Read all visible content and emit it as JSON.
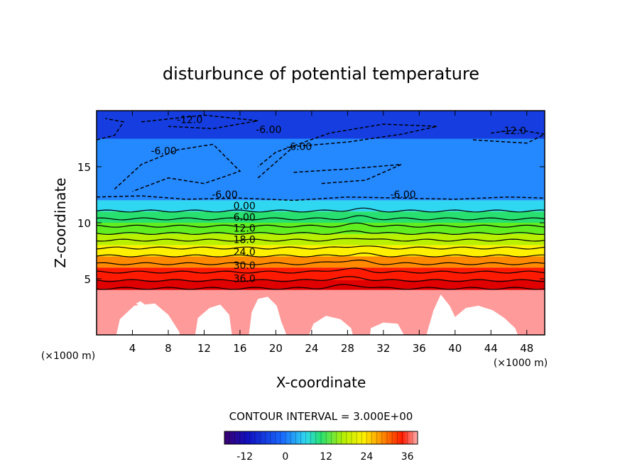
{
  "chart_data": {
    "type": "heatmap",
    "title": "disturbunce of potential temperature",
    "xlabel": "X-coordinate",
    "ylabel": "Z-coordinate",
    "x_units": "(×1000 m)",
    "y_units": "(×1000 m)",
    "xlim": [
      0,
      50
    ],
    "ylim": [
      0,
      20
    ],
    "x_ticks": [
      4,
      8,
      12,
      16,
      20,
      24,
      28,
      32,
      36,
      40,
      44,
      48
    ],
    "y_ticks": [
      5,
      10,
      15
    ],
    "contour_interval_text": "CONTOUR INTERVAL = 3.000E+00",
    "colorbar": {
      "min": -18,
      "max": 39,
      "ticks": [
        -12,
        0,
        12,
        24,
        36
      ]
    },
    "contour_labels": [
      {
        "text": "-12.0",
        "x": 10.4,
        "z": 18.9
      },
      {
        "text": "-12.0",
        "x": 46.5,
        "z": 17.9
      },
      {
        "text": "-6.00",
        "x": 7.5,
        "z": 16.1
      },
      {
        "text": "-6.00",
        "x": 19.2,
        "z": 18.0
      },
      {
        "text": "-6.00",
        "x": 22.6,
        "z": 16.5
      },
      {
        "text": "-6.00",
        "x": 14.3,
        "z": 12.2
      },
      {
        "text": "-6.00",
        "x": 34.2,
        "z": 12.2
      },
      {
        "text": "0.00",
        "x": 16.5,
        "z": 11.2
      },
      {
        "text": "6.00",
        "x": 16.5,
        "z": 10.2
      },
      {
        "text": "12.0",
        "x": 16.5,
        "z": 9.2
      },
      {
        "text": "18.0",
        "x": 16.5,
        "z": 8.2
      },
      {
        "text": "24.0",
        "x": 16.5,
        "z": 7.1
      },
      {
        "text": "30.0",
        "x": 16.5,
        "z": 5.9
      },
      {
        "text": "36.0",
        "x": 16.5,
        "z": 4.7
      }
    ],
    "field_bands": [
      {
        "z_low": 17.5,
        "z_high": 20.0,
        "value": -12
      },
      {
        "z_low": 12.0,
        "z_high": 17.5,
        "value": -7
      },
      {
        "z_low": 11.0,
        "z_high": 12.0,
        "value": 0
      },
      {
        "z_low": 10.0,
        "z_high": 11.0,
        "value": 4
      },
      {
        "z_low": 9.0,
        "z_high": 10.0,
        "value": 9
      },
      {
        "z_low": 8.0,
        "z_high": 9.0,
        "value": 15
      },
      {
        "z_low": 7.0,
        "z_high": 8.0,
        "value": 21
      },
      {
        "z_low": 6.0,
        "z_high": 7.0,
        "value": 27
      },
      {
        "z_low": 4.9,
        "z_high": 6.0,
        "value": 33
      },
      {
        "z_low": 4.0,
        "z_high": 4.9,
        "value": 38
      },
      {
        "z_low": 0.0,
        "z_high": 4.0,
        "value": 40
      }
    ],
    "colors": {
      "below_ground": "#ff9a9a",
      "blank": "#ffffff"
    }
  }
}
